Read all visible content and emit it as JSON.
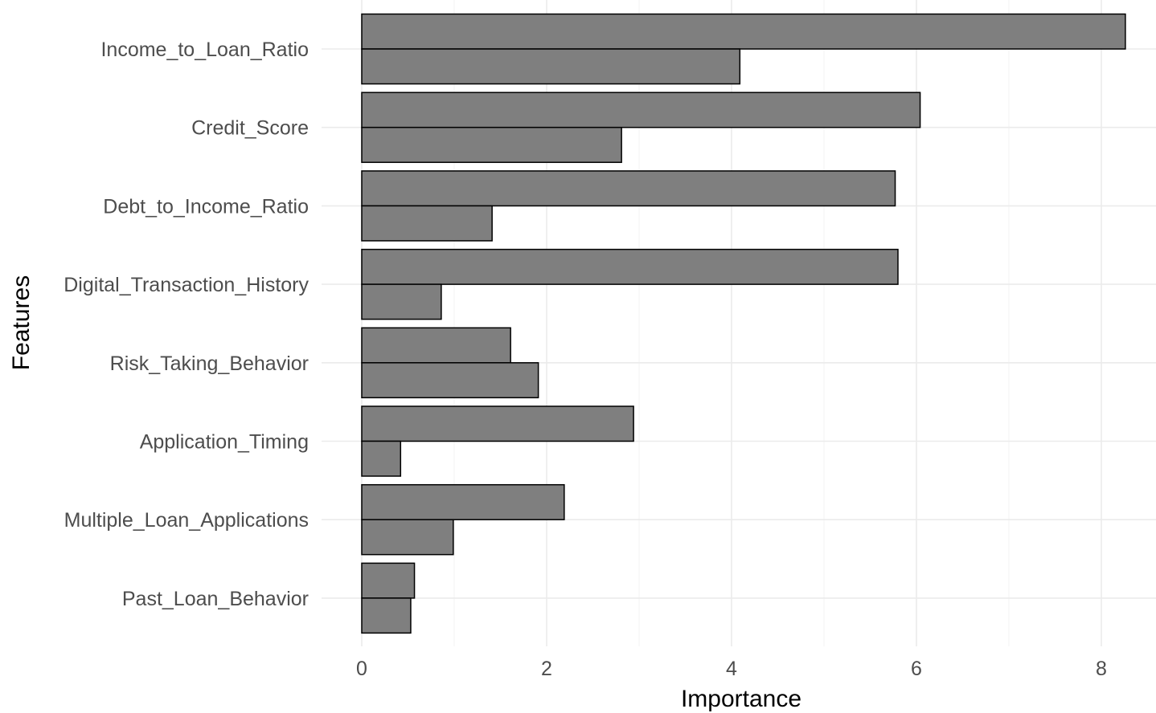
{
  "chart_data": {
    "type": "bar",
    "orientation": "horizontal",
    "title": "",
    "xlabel": "Importance",
    "ylabel": "Features",
    "xlim": [
      0,
      8.3
    ],
    "xticks": [
      0,
      2,
      4,
      6,
      8
    ],
    "grid": true,
    "categories": [
      "Income_to_Loan_Ratio",
      "Credit_Score",
      "Debt_to_Income_Ratio",
      "Digital_Transaction_History",
      "Risk_Taking_Behavior",
      "Application_Timing",
      "Multiple_Loan_Applications",
      "Past_Loan_Behavior"
    ],
    "series": [
      {
        "values": [
          8.26,
          6.04,
          5.77,
          5.8,
          1.61,
          2.94,
          2.19,
          0.57
        ]
      },
      {
        "values": [
          4.09,
          2.81,
          1.41,
          0.86,
          1.91,
          0.42,
          0.99,
          0.53
        ]
      }
    ],
    "bar_color": "#7f7f7f",
    "bar_edge_color": "#000000"
  }
}
